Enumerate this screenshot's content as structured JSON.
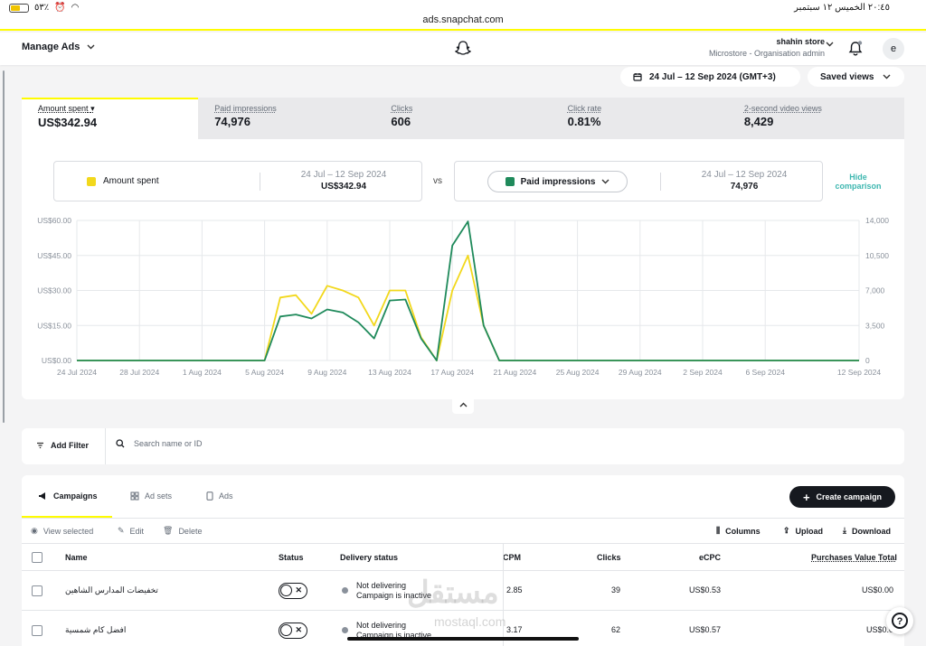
{
  "status_bar": {
    "time_date": "٢٠:٤٥   الخميس ١٢ سبتمبر",
    "battery": "٥٣٪"
  },
  "url": "ads.snapchat.com",
  "nav": {
    "manage_ads": "Manage Ads",
    "account_name": "shahin store",
    "account_role": "Microstore - Organisation admin",
    "avatar_letter": "e"
  },
  "date_range": "24 Jul – 12 Sep 2024 (GMT+3)",
  "saved_views": "Saved views",
  "metrics": [
    {
      "label": "Amount spent",
      "value": "US$342.94"
    },
    {
      "label": "Paid impressions",
      "value": "74,976"
    },
    {
      "label": "Clicks",
      "value": "606"
    },
    {
      "label": "Click rate",
      "value": "0.81%"
    },
    {
      "label": "2-second video views",
      "value": "8,429"
    }
  ],
  "comparison": {
    "left": {
      "name": "Amount spent",
      "range": "24 Jul – 12 Sep 2024",
      "value": "US$342.94"
    },
    "vs": "vs",
    "right": {
      "name": "Paid impressions",
      "range": "24 Jul – 12 Sep 2024",
      "value": "74,976"
    },
    "hide_label": "Hide comparison"
  },
  "colors": {
    "amount": "#f2d81c",
    "impressions": "#1f8a5b",
    "accent": "#fffc00",
    "hide": "#3eb7b0"
  },
  "chart_data": {
    "type": "line",
    "x": [
      "24 Jul",
      "25 Jul",
      "26 Jul",
      "27 Jul",
      "28 Jul",
      "29 Jul",
      "30 Jul",
      "31 Jul",
      "1 Aug",
      "2 Aug",
      "3 Aug",
      "4 Aug",
      "5 Aug",
      "6 Aug",
      "7 Aug",
      "8 Aug",
      "9 Aug",
      "10 Aug",
      "11 Aug",
      "12 Aug",
      "13 Aug",
      "14 Aug",
      "15 Aug",
      "16 Aug",
      "17 Aug",
      "18 Aug",
      "19 Aug",
      "20 Aug",
      "21 Aug",
      "22 Aug",
      "23 Aug",
      "24 Aug",
      "25 Aug",
      "26 Aug",
      "27 Aug",
      "28 Aug",
      "29 Aug",
      "30 Aug",
      "31 Aug",
      "1 Sep",
      "2 Sep",
      "3 Sep",
      "4 Sep",
      "5 Sep",
      "6 Sep",
      "7 Sep",
      "8 Sep",
      "9 Sep",
      "10 Sep",
      "11 Sep",
      "12 Sep"
    ],
    "x_ticks": [
      "24 Jul 2024",
      "28 Jul 2024",
      "1 Aug 2024",
      "5 Aug 2024",
      "9 Aug 2024",
      "13 Aug 2024",
      "17 Aug 2024",
      "21 Aug 2024",
      "25 Aug 2024",
      "29 Aug 2024",
      "2 Sep 2024",
      "6 Sep 2024",
      "12 Sep 2024"
    ],
    "y_left_ticks": [
      "US$0.00",
      "US$15.00",
      "US$30.00",
      "US$45.00",
      "US$60.00"
    ],
    "y_right_ticks": [
      "0",
      "3,500",
      "7,000",
      "10,500",
      "14,000"
    ],
    "ylim_left": [
      0,
      60
    ],
    "ylim_right": [
      0,
      14000
    ],
    "series": [
      {
        "name": "Amount spent",
        "axis": "left",
        "values": [
          0,
          0,
          0,
          0,
          0,
          0,
          0,
          0,
          0,
          0,
          0,
          0,
          0,
          27,
          28,
          20,
          32,
          30,
          27,
          15,
          30,
          30,
          10,
          0,
          30,
          45,
          15,
          0,
          0,
          0,
          0,
          0,
          0,
          0,
          0,
          0,
          0,
          0,
          0,
          0,
          0,
          0,
          0,
          0,
          0,
          0,
          0,
          0,
          0,
          0,
          0
        ]
      },
      {
        "name": "Paid impressions",
        "axis": "right",
        "values": [
          0,
          0,
          0,
          0,
          0,
          0,
          0,
          0,
          0,
          0,
          0,
          0,
          0,
          4400,
          4600,
          4200,
          5100,
          4800,
          3800,
          2200,
          6000,
          6100,
          2200,
          0,
          11500,
          13900,
          3500,
          0,
          0,
          0,
          0,
          0,
          0,
          0,
          0,
          0,
          0,
          0,
          0,
          0,
          0,
          0,
          0,
          0,
          0,
          0,
          0,
          0,
          0,
          0,
          0
        ]
      }
    ],
    "grid": true
  },
  "filter": {
    "add_filter": "Add Filter",
    "search_placeholder": "Search name or ID"
  },
  "tabs": [
    {
      "label": "Campaigns"
    },
    {
      "label": "Ad sets"
    },
    {
      "label": "Ads"
    }
  ],
  "create_campaign": "Create campaign",
  "actions": {
    "view_selected": "View selected",
    "edit": "Edit",
    "delete": "Delete",
    "columns": "Columns",
    "upload": "Upload",
    "download": "Download"
  },
  "table": {
    "headers": {
      "name": "Name",
      "status": "Status",
      "delivery": "Delivery status",
      "cpm": "CPM",
      "clicks": "Clicks",
      "ecpc": "eCPC",
      "purchases": "Purchases Value Total"
    },
    "rows": [
      {
        "name": "تخفيضات المدارس الشاهين",
        "delivery1": "Not delivering",
        "delivery2": "Campaign is inactive",
        "cpm": "2.85",
        "clicks": "39",
        "ecpc": "US$0.53",
        "purchases": "US$0.00"
      },
      {
        "name": "افضل كام شمسية",
        "delivery1": "Not delivering",
        "delivery2": "Campaign is inactive",
        "cpm": "3.17",
        "clicks": "62",
        "ecpc": "US$0.57",
        "purchases": "US$0.0"
      }
    ]
  },
  "watermark": {
    "main": "مستقل",
    "sub": "mostaql.com"
  }
}
